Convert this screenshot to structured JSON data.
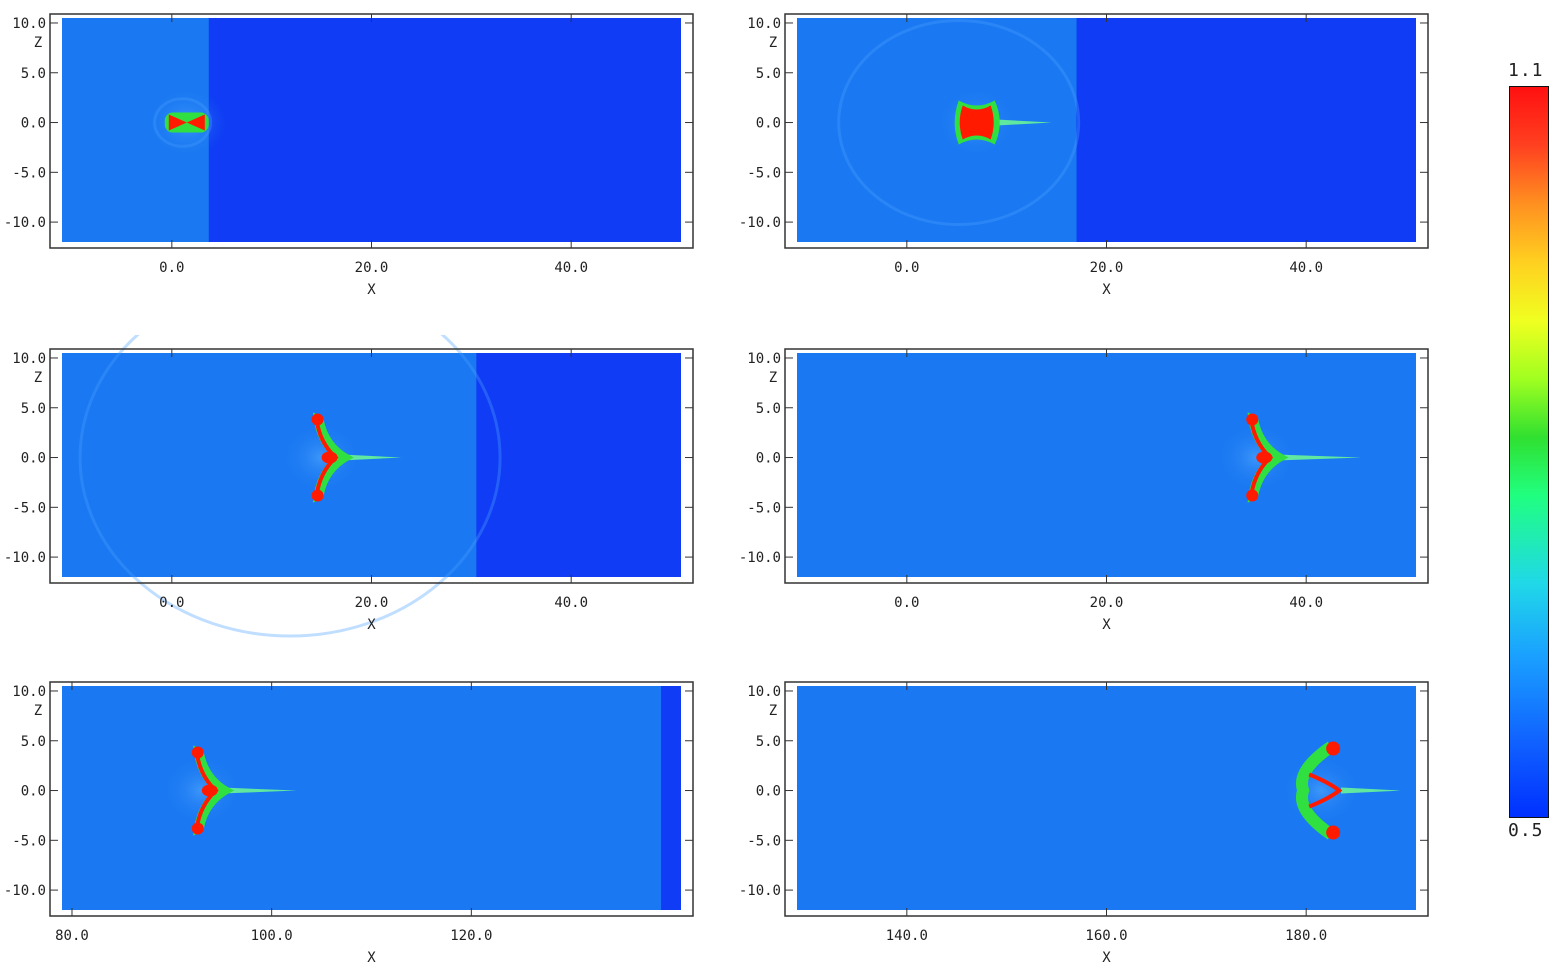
{
  "figure": {
    "panels": [
      {
        "id": "p1",
        "xlabel": "X",
        "zlabel": "Z",
        "x_ticks": [
          "0.0",
          "20.0",
          "40.0"
        ],
        "x_tick_vals": [
          0,
          20,
          40
        ],
        "z_ticks": [
          "10.0",
          "5.0",
          "0.0",
          "-5.0",
          "-10.0"
        ],
        "z_tick_vals": [
          10,
          5,
          0,
          -5,
          -10
        ],
        "xlim": [
          -11,
          51
        ],
        "zlim": [
          -12,
          10.5
        ],
        "shock_x": 3.7
      },
      {
        "id": "p2",
        "xlabel": "X",
        "zlabel": "Z",
        "x_ticks": [
          "0.0",
          "20.0",
          "40.0"
        ],
        "x_tick_vals": [
          0,
          20,
          40
        ],
        "z_ticks": [
          "10.0",
          "5.0",
          "0.0",
          "-5.0",
          "-10.0"
        ],
        "z_tick_vals": [
          10,
          5,
          0,
          -5,
          -10
        ],
        "xlim": [
          -11,
          51
        ],
        "zlim": [
          -12,
          10.5
        ],
        "shock_x": 17.0
      },
      {
        "id": "p3",
        "xlabel": "X",
        "zlabel": "Z",
        "x_ticks": [
          "0.0",
          "20.0",
          "40.0"
        ],
        "x_tick_vals": [
          0,
          20,
          40
        ],
        "z_ticks": [
          "10.0",
          "5.0",
          "0.0",
          "-5.0",
          "-10.0"
        ],
        "z_tick_vals": [
          10,
          5,
          0,
          -5,
          -10
        ],
        "xlim": [
          -11,
          51
        ],
        "zlim": [
          -12,
          10.5
        ],
        "shock_x": 30.5
      },
      {
        "id": "p4",
        "xlabel": "X",
        "zlabel": "Z",
        "x_ticks": [
          "0.0",
          "20.0",
          "40.0"
        ],
        "x_tick_vals": [
          0,
          20,
          40
        ],
        "z_ticks": [
          "10.0",
          "5.0",
          "0.0",
          "-5.0",
          "-10.0"
        ],
        "z_tick_vals": [
          10,
          5,
          0,
          -5,
          -10
        ],
        "xlim": [
          -11,
          51
        ],
        "zlim": [
          -12,
          10.5
        ],
        "shock_x": null
      },
      {
        "id": "p5",
        "xlabel": "X",
        "zlabel": "Z",
        "x_ticks": [
          "80.0",
          "100.0",
          "120.0"
        ],
        "x_tick_vals": [
          80,
          100,
          120
        ],
        "z_ticks": [
          "10.0",
          "5.0",
          "0.0",
          "-5.0",
          "-10.0"
        ],
        "z_tick_vals": [
          10,
          5,
          0,
          -5,
          -10
        ],
        "xlim": [
          79,
          141
        ],
        "zlim": [
          -12,
          10.5
        ],
        "shock_x": 139.0
      },
      {
        "id": "p6",
        "xlabel": "X",
        "zlabel": "Z",
        "x_ticks": [
          "140.0",
          "160.0",
          "180.0"
        ],
        "x_tick_vals": [
          140,
          160,
          180
        ],
        "z_ticks": [
          "10.0",
          "5.0",
          "0.0",
          "-5.0",
          "-10.0"
        ],
        "z_tick_vals": [
          10,
          5,
          0,
          -5,
          -10
        ],
        "xlim": [
          129,
          191
        ],
        "zlim": [
          -12,
          10.5
        ],
        "shock_x": null
      }
    ],
    "colorbar": {
      "max_label": "1.1",
      "min_label": "0.5",
      "range": [
        0.5,
        1.1
      ]
    },
    "colors": {
      "post_shock": "#1a78f2",
      "pre_shock": "#0f3cf4",
      "cloud_core": "#ff1a00",
      "cloud_edge": "#30e040"
    }
  }
}
